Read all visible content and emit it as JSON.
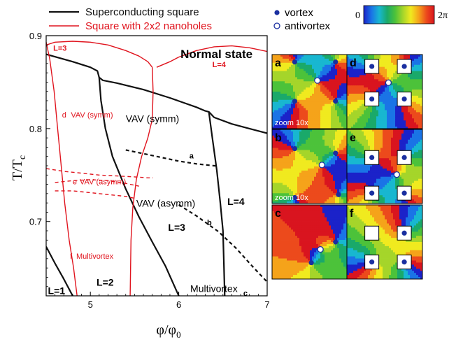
{
  "chart_data": [
    {
      "type": "line",
      "subtype": "phase-diagram",
      "title": "",
      "xlabel": "φ/φ",
      "xlabel_sub": "0",
      "ylabel": "T/T",
      "ylabel_sub": "c",
      "xlim": [
        4.5,
        7.0
      ],
      "ylim": [
        0.62,
        0.9
      ],
      "xticks": [
        5,
        6,
        7
      ],
      "xtick_labels": [
        "5",
        "6",
        "7"
      ],
      "yticks": [
        0.7,
        0.8,
        0.9
      ],
      "ytick_labels": [
        "0.7",
        "0.8",
        "0.9"
      ],
      "legend_position": "top-left",
      "legend": [
        {
          "name": "Superconducting square",
          "color": "#111111"
        },
        {
          "name": "Square with 2x2 nanoholes",
          "color": "#e0141e"
        }
      ],
      "series": [
        {
          "name": "Superconducting square",
          "group": "square",
          "color": "#111111",
          "style": "solid",
          "x": [
            4.5,
            4.8,
            5.0,
            5.08,
            5.1,
            5.14,
            5.3,
            5.6,
            5.9,
            6.2,
            6.3,
            6.34,
            6.4,
            6.6,
            6.8,
            7.0
          ],
          "y": [
            0.88,
            0.872,
            0.866,
            0.862,
            0.855,
            0.852,
            0.849,
            0.842,
            0.833,
            0.823,
            0.819,
            0.818,
            0.812,
            0.805,
            0.8,
            0.795
          ]
        },
        {
          "group": "square",
          "color": "#111111",
          "style": "solid",
          "x": [
            5.1,
            5.12,
            5.17,
            5.25,
            5.4,
            5.55,
            5.7,
            5.85,
            6.0
          ],
          "y": [
            0.855,
            0.83,
            0.8,
            0.77,
            0.735,
            0.705,
            0.678,
            0.652,
            0.62
          ]
        },
        {
          "group": "square",
          "color": "#111111",
          "style": "solid",
          "x": [
            6.34,
            6.38,
            6.43,
            6.47,
            6.5,
            6.51,
            6.52
          ],
          "y": [
            0.818,
            0.79,
            0.755,
            0.72,
            0.69,
            0.655,
            0.62
          ]
        },
        {
          "group": "square",
          "color": "#111111",
          "style": "solid",
          "x": [
            4.5,
            4.6,
            4.7,
            4.8
          ],
          "y": [
            0.673,
            0.655,
            0.638,
            0.62
          ]
        },
        {
          "group": "square",
          "color": "#111111",
          "style": "dashed",
          "x": [
            5.4,
            5.6,
            5.8,
            6.0,
            6.2,
            6.4,
            6.45
          ],
          "y": [
            0.777,
            0.773,
            0.769,
            0.765,
            0.762,
            0.76,
            0.76
          ]
        },
        {
          "group": "square",
          "color": "#111111",
          "style": "dashed",
          "x": [
            6.0,
            6.2,
            6.45,
            6.65,
            6.85,
            7.0
          ],
          "y": [
            0.718,
            0.706,
            0.689,
            0.671,
            0.65,
            0.635
          ]
        },
        {
          "name": "Square with 2x2 nanoholes",
          "group": "nanoholes",
          "color": "#e0141e",
          "style": "solid",
          "x": [
            4.5,
            4.6,
            4.8,
            5.0,
            5.2,
            5.4,
            5.55,
            5.65,
            5.7
          ],
          "y": [
            0.89,
            0.893,
            0.894,
            0.893,
            0.89,
            0.884,
            0.878,
            0.872,
            0.866
          ]
        },
        {
          "group": "nanoholes",
          "color": "#e0141e",
          "style": "solid",
          "x": [
            5.7,
            5.71,
            5.7,
            5.65,
            5.58,
            5.52,
            5.48,
            5.46,
            5.45
          ],
          "y": [
            0.866,
            0.84,
            0.81,
            0.79,
            0.77,
            0.745,
            0.715,
            0.68,
            0.62
          ]
        },
        {
          "group": "nanoholes",
          "color": "#e0141e",
          "style": "solid",
          "x": [
            5.75,
            5.9,
            6.0,
            6.2,
            6.4,
            6.6,
            6.8,
            7.0
          ],
          "y": [
            0.866,
            0.872,
            0.877,
            0.884,
            0.888,
            0.889,
            0.887,
            0.883
          ]
        },
        {
          "group": "nanoholes",
          "color": "#e0141e",
          "style": "solid",
          "x": [
            4.5,
            4.54,
            4.59,
            4.63,
            4.67,
            4.71,
            4.76,
            4.81,
            4.85
          ],
          "y": [
            0.893,
            0.875,
            0.84,
            0.8,
            0.76,
            0.72,
            0.68,
            0.65,
            0.62
          ]
        },
        {
          "group": "nanoholes",
          "color": "#e0141e",
          "style": "dashed",
          "x": [
            4.5,
            4.7,
            4.9,
            5.1,
            5.3,
            5.5,
            5.65,
            5.71
          ],
          "y": [
            0.757,
            0.754,
            0.752,
            0.75,
            0.749,
            0.748,
            0.747,
            0.747
          ]
        },
        {
          "group": "nanoholes",
          "color": "#e0141e",
          "style": "dashed",
          "x": [
            4.6,
            4.8,
            5.0,
            5.2,
            5.4,
            5.55
          ],
          "y": [
            0.742,
            0.744,
            0.745,
            0.744,
            0.741,
            0.738
          ]
        },
        {
          "group": "nanoholes",
          "color": "#e0141e",
          "style": "dashed",
          "x": [
            4.6,
            4.8,
            5.0,
            5.2,
            5.4,
            5.5
          ],
          "y": [
            0.733,
            0.733,
            0.731,
            0.729,
            0.727,
            0.725
          ]
        }
      ],
      "annotations": [
        {
          "text": "Normal state",
          "x": 6.02,
          "y": 0.876,
          "color": "#000000",
          "bold": true,
          "size": "large"
        },
        {
          "text": "L=3",
          "x": 4.58,
          "y": 0.884,
          "color": "#e0141e",
          "bold": true,
          "size": "small"
        },
        {
          "text": "L=4",
          "x": 6.38,
          "y": 0.866,
          "color": "#e0141e",
          "bold": true,
          "size": "small"
        },
        {
          "text": "d",
          "x": 4.68,
          "y": 0.812,
          "color": "#e0141e",
          "bold": false,
          "size": "small"
        },
        {
          "text": "VAV (symm)",
          "x": 4.78,
          "y": 0.812,
          "color": "#e0141e",
          "bold": false,
          "size": "small"
        },
        {
          "text": "VAV (symm)",
          "x": 5.4,
          "y": 0.807,
          "color": "#000000",
          "bold": false,
          "size": "medium"
        },
        {
          "text": "a",
          "x": 6.12,
          "y": 0.768,
          "color": "#000000",
          "bold": true,
          "size": "small"
        },
        {
          "text": "e",
          "x": 4.8,
          "y": 0.74,
          "color": "#e0141e",
          "bold": false,
          "size": "small"
        },
        {
          "text": "VAV (asymm)",
          "x": 4.88,
          "y": 0.74,
          "color": "#e0141e",
          "bold": false,
          "size": "small"
        },
        {
          "text": "VAV (asymm)",
          "x": 5.52,
          "y": 0.716,
          "color": "#000000",
          "bold": false,
          "size": "medium"
        },
        {
          "text": "L=4",
          "x": 6.55,
          "y": 0.718,
          "color": "#000000",
          "bold": true,
          "size": "medium"
        },
        {
          "text": "b",
          "x": 6.32,
          "y": 0.696,
          "color": "#000000",
          "bold": true,
          "size": "small"
        },
        {
          "text": "L=3",
          "x": 5.88,
          "y": 0.69,
          "color": "#000000",
          "bold": true,
          "size": "medium"
        },
        {
          "text": "f",
          "x": 4.77,
          "y": 0.66,
          "color": "#e0141e",
          "bold": false,
          "size": "small"
        },
        {
          "text": "Multivortex",
          "x": 4.84,
          "y": 0.66,
          "color": "#e0141e",
          "bold": false,
          "size": "small"
        },
        {
          "text": "L=2",
          "x": 5.07,
          "y": 0.631,
          "color": "#000000",
          "bold": true,
          "size": "medium"
        },
        {
          "text": "Multivortex",
          "x": 6.13,
          "y": 0.624,
          "color": "#000000",
          "bold": false,
          "size": "medium"
        },
        {
          "text": "c",
          "x": 6.73,
          "y": 0.62,
          "color": "#000000",
          "bold": true,
          "size": "small"
        },
        {
          "text": "L=1",
          "x": 4.52,
          "y": 0.622,
          "color": "#000000",
          "bold": true,
          "size": "medium"
        }
      ]
    },
    {
      "type": "heatmap",
      "subtype": "phase-maps",
      "colorbar": {
        "min_label": "0",
        "max_label": "2π",
        "colors": [
          "#1b22c9",
          "#1a74e6",
          "#18b7d0",
          "#1aa96a",
          "#4cc23a",
          "#a5d52a",
          "#f0ea1f",
          "#f5a31a",
          "#ec4a1c",
          "#d9141f"
        ]
      },
      "marker_legend": [
        {
          "label": "vortex",
          "marker": "filled-circle",
          "color": "#1a2fa0"
        },
        {
          "label": "antivortex",
          "marker": "open-circle",
          "color": "#1a2fa0"
        }
      ],
      "panels": [
        {
          "label": "a",
          "caption": "zoom 10x",
          "holes": false
        },
        {
          "label": "b",
          "caption": "zoom 10x",
          "holes": false
        },
        {
          "label": "c",
          "caption": "",
          "holes": false
        },
        {
          "label": "d",
          "caption": "",
          "holes": true
        },
        {
          "label": "e",
          "caption": "",
          "holes": true
        },
        {
          "label": "f",
          "caption": "",
          "holes": true
        }
      ]
    }
  ]
}
